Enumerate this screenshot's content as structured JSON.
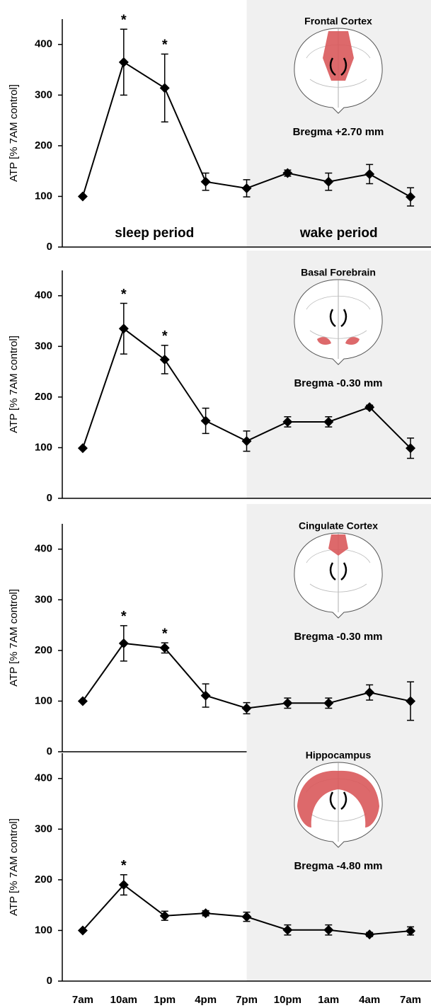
{
  "chart_data": [
    {
      "type": "line",
      "ylabel": "ATP [% 7AM control]",
      "inset_title": "Frontal Cortex",
      "inset_subtitle": "Bregma +2.70 mm",
      "sleep_label": "sleep period",
      "wake_label": "wake period",
      "values": [
        100,
        365,
        314,
        129,
        116,
        146,
        129,
        144,
        99
      ],
      "errors": [
        null,
        65,
        67,
        17,
        17,
        6,
        17,
        19,
        18
      ],
      "annotations": [
        {
          "index": 1,
          "text": "*"
        },
        {
          "index": 2,
          "text": "*"
        }
      ],
      "ylim": [
        0,
        450
      ],
      "yticks": [
        0,
        100,
        200,
        300,
        400
      ],
      "color": "#000000",
      "shade": {
        "from": 4,
        "color": "#f0f0f0"
      },
      "region_color": "#d9595b"
    },
    {
      "type": "line",
      "ylabel": "ATP [% 7AM control]",
      "inset_title": "Basal Forebrain",
      "inset_subtitle": "Bregma -0.30 mm",
      "values": [
        99,
        335,
        274,
        153,
        113,
        151,
        151,
        180,
        99
      ],
      "errors": [
        null,
        50,
        28,
        25,
        20,
        10,
        10,
        4,
        20
      ],
      "annotations": [
        {
          "index": 1,
          "text": "*"
        },
        {
          "index": 2,
          "text": "*"
        }
      ],
      "ylim": [
        0,
        450
      ],
      "yticks": [
        0,
        100,
        200,
        300,
        400
      ],
      "color": "#000000",
      "shade": {
        "from": 4,
        "color": "#f0f0f0"
      },
      "region_color": "#d9595b"
    },
    {
      "type": "line",
      "ylabel": "ATP [% 7AM control]",
      "inset_title": "Cingulate Cortex",
      "inset_subtitle": "Bregma -0.30 mm",
      "values": [
        100,
        214,
        205,
        111,
        86,
        96,
        96,
        117,
        100
      ],
      "errors": [
        null,
        35,
        10,
        23,
        11,
        10,
        10,
        15,
        38
      ],
      "annotations": [
        {
          "index": 1,
          "text": "*"
        },
        {
          "index": 2,
          "text": "*"
        }
      ],
      "ylim": [
        0,
        450
      ],
      "yticks": [
        0,
        100,
        200,
        300,
        400
      ],
      "color": "#000000",
      "shade": {
        "from": 4,
        "color": "#f0f0f0"
      },
      "region_color": "#d9595b"
    },
    {
      "type": "line",
      "ylabel": "ATP [% 7AM control]",
      "inset_title": "Hippocampus",
      "inset_subtitle": "Bregma -4.80 mm",
      "categories": [
        "7am",
        "10am",
        "1pm",
        "4pm",
        "7pm",
        "10pm",
        "1am",
        "4am",
        "7am"
      ],
      "values": [
        100,
        190,
        129,
        134,
        127,
        101,
        101,
        92,
        99
      ],
      "errors": [
        null,
        20,
        9,
        5,
        9,
        10,
        10,
        4,
        8
      ],
      "annotations": [
        {
          "index": 1,
          "text": "*"
        }
      ],
      "ylim": [
        0,
        450
      ],
      "yticks": [
        0,
        100,
        200,
        300,
        400
      ],
      "color": "#000000",
      "shade": {
        "from": 4,
        "color": "#f0f0f0"
      },
      "region_color": "#d9595b"
    }
  ]
}
